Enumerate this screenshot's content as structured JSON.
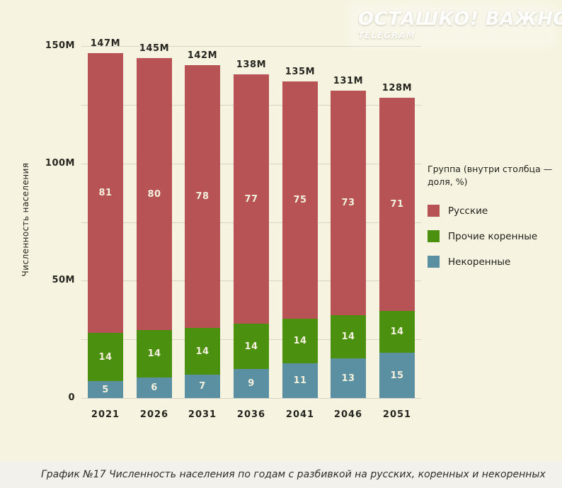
{
  "watermark": {
    "title": "ОСТАШКО! ВАЖНОЕ",
    "subtitle": "TELEGRAM"
  },
  "chart_data": {
    "type": "bar",
    "stacked": true,
    "ylabel": "Численность населения",
    "xlabel": "",
    "ylim": [
      0,
      150
    ],
    "grid": true,
    "categories": [
      "2021",
      "2026",
      "2031",
      "2036",
      "2041",
      "2046",
      "2051"
    ],
    "totals_millions": [
      147,
      145,
      142,
      138,
      135,
      131,
      128
    ],
    "total_labels": [
      "147M",
      "145M",
      "142M",
      "138M",
      "135M",
      "131M",
      "128M"
    ],
    "series": [
      {
        "name": "Русские",
        "color": "#b75354",
        "values_pct": [
          81,
          80,
          78,
          77,
          75,
          73,
          71
        ]
      },
      {
        "name": "Прочие коренные",
        "color": "#4c900f",
        "values_pct": [
          14,
          14,
          14,
          14,
          14,
          14,
          14
        ]
      },
      {
        "name": "Некоренные",
        "color": "#5a90a1",
        "values_pct": [
          5,
          6,
          7,
          9,
          11,
          13,
          15
        ]
      }
    ],
    "yticks": [
      {
        "value": 0,
        "label": "0"
      },
      {
        "value": 50,
        "label": "50M"
      },
      {
        "value": 100,
        "label": "100M"
      },
      {
        "value": 150,
        "label": "150M"
      }
    ],
    "minor_gridlines": [
      25,
      75,
      125
    ],
    "legend": {
      "title": "Группа (внутри столбца — доля, %)",
      "position": "right"
    }
  },
  "caption": "График №17 Численность населения по годам с разбивкой на русских, коренных и некоренных",
  "colors": {
    "background": "#f6f4e1",
    "footer_background": "#f2f1ec",
    "gridline": "#d8d5c6",
    "axis_text": "#26251f",
    "segment_label": "#f3f0dd"
  }
}
